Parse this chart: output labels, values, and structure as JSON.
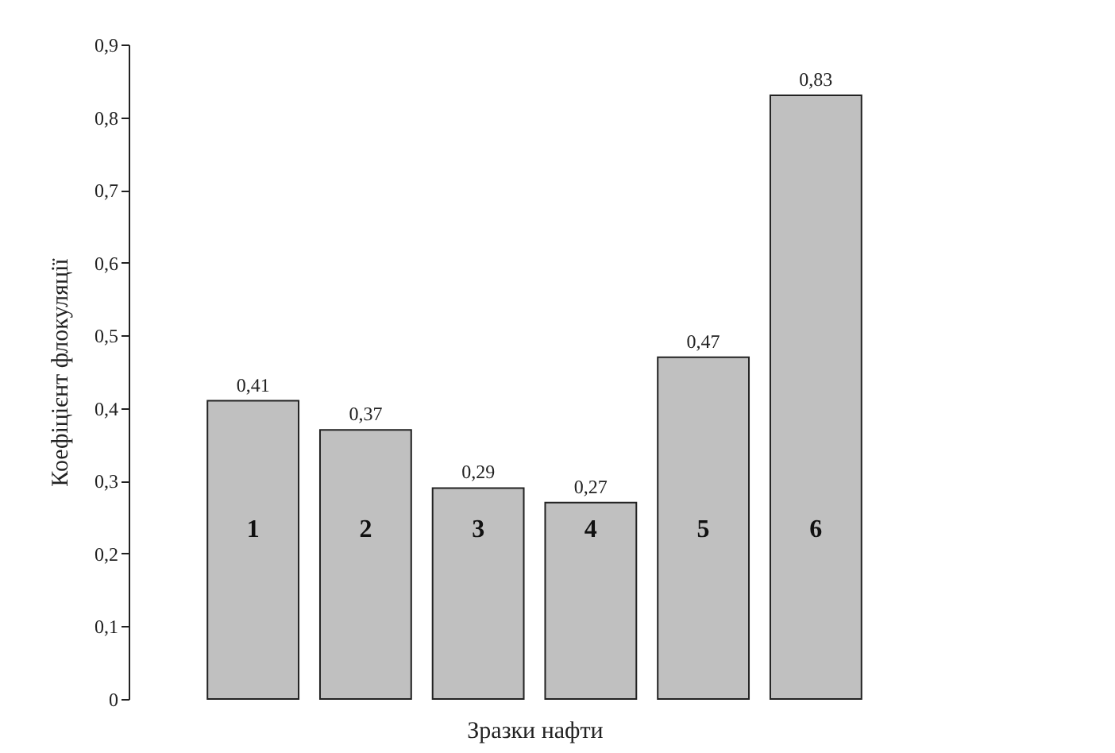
{
  "chart_data": {
    "type": "bar",
    "xlabel": "Зразки нафти",
    "ylabel": "Коефіцієнт флокуляції",
    "categories": [
      "1",
      "2",
      "3",
      "4",
      "5",
      "6"
    ],
    "values": [
      0.41,
      0.37,
      0.29,
      0.27,
      0.47,
      0.83
    ],
    "value_labels": [
      "0,41",
      "0,37",
      "0,29",
      "0,27",
      "0,47",
      "0,83"
    ],
    "color": "#c0c0c0",
    "ylim": [
      0,
      0.9
    ],
    "yticks": [
      0,
      {
        "value": 0.1,
        "label": "0,1"
      },
      {
        "value": 0.2,
        "label": "0,2"
      },
      {
        "value": 0.3,
        "label": "0,3"
      },
      {
        "value": 0.4,
        "label": "0,4"
      },
      {
        "value": 0.5,
        "label": "0,5"
      },
      {
        "value": 0.6,
        "label": "0,6"
      },
      {
        "value": 0.7,
        "label": "0,7"
      },
      {
        "value": 0.8,
        "label": "0,8"
      },
      {
        "value": 0.9,
        "label": "0,9"
      }
    ],
    "grid": false
  }
}
